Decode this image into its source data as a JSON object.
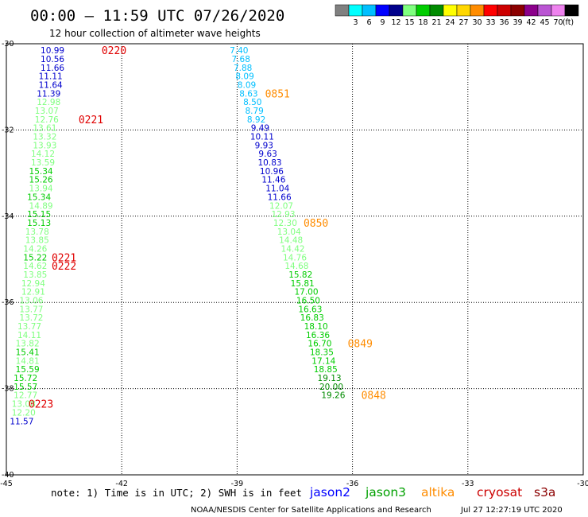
{
  "header": {
    "title": "00:00 – 11:59 UTC 07/26/2020",
    "subtitle": "12 hour collection of altimeter wave heights"
  },
  "legend": {
    "colors": [
      "#808080",
      "#00ffff",
      "#00bfff",
      "#0000ff",
      "#00008b",
      "#7fff7f",
      "#00cd00",
      "#008b00",
      "#ffff00",
      "#ffd700",
      "#ff8c00",
      "#ff0000",
      "#cd0000",
      "#8b0000",
      "#8b008b",
      "#ba55d3",
      "#ee82ee",
      "#000000"
    ],
    "labels": [
      "3",
      "6",
      "9",
      "12",
      "15",
      "18",
      "21",
      "24",
      "27",
      "30",
      "33",
      "36",
      "39",
      "42",
      "45",
      "70"
    ],
    "unit": "(ft)"
  },
  "footer": {
    "note": "note:  1) Time is in UTC;  2) SWH is in feet",
    "satellites": [
      {
        "name": "jason2",
        "color": "#0000ff"
      },
      {
        "name": "jason3",
        "color": "#00a000"
      },
      {
        "name": "altika",
        "color": "#ff8c00"
      },
      {
        "name": "cryosat",
        "color": "#cc0000"
      },
      {
        "name": "s3a",
        "color": "#8b0000"
      }
    ],
    "credit": "NOAA/NESDIS Center for Satellite Applications and Research",
    "timestamp": "Jul 27 12:27:19 UTC 2020"
  },
  "chart_data": {
    "type": "scatter",
    "xlim": [
      -45,
      -30
    ],
    "ylim": [
      -40,
      -30
    ],
    "x_ticks": [
      "-45",
      "-42",
      "-39",
      "-36",
      "-33",
      "-30"
    ],
    "y_ticks": [
      "-30",
      "-32",
      "-34",
      "-36",
      "-38",
      "-40"
    ],
    "grid": true,
    "track_a": {
      "points": [
        {
          "lon": -43.8,
          "lat": -30.15,
          "v": "10.99",
          "c": "#0000cd"
        },
        {
          "lon": -43.8,
          "lat": -30.35,
          "v": "10.56",
          "c": "#0000cd"
        },
        {
          "lon": -43.8,
          "lat": -30.55,
          "v": "11.66",
          "c": "#0000cd"
        },
        {
          "lon": -43.85,
          "lat": -30.75,
          "v": "11.11",
          "c": "#0000cd"
        },
        {
          "lon": -43.85,
          "lat": -30.95,
          "v": "11.64",
          "c": "#0000cd"
        },
        {
          "lon": -43.9,
          "lat": -31.15,
          "v": "11.39",
          "c": "#0000cd"
        },
        {
          "lon": -43.9,
          "lat": -31.35,
          "v": "12.98",
          "c": "#7fff7f"
        },
        {
          "lon": -43.95,
          "lat": -31.55,
          "v": "13.07",
          "c": "#7fff7f"
        },
        {
          "lon": -43.95,
          "lat": -31.75,
          "v": "12.76",
          "c": "#7fff7f"
        },
        {
          "lon": -44.0,
          "lat": -31.95,
          "v": "13.61",
          "c": "#7fff7f"
        },
        {
          "lon": -44.0,
          "lat": -32.15,
          "v": "13.32",
          "c": "#7fff7f"
        },
        {
          "lon": -44.0,
          "lat": -32.35,
          "v": "13.93",
          "c": "#7fff7f"
        },
        {
          "lon": -44.05,
          "lat": -32.55,
          "v": "14.12",
          "c": "#7fff7f"
        },
        {
          "lon": -44.05,
          "lat": -32.75,
          "v": "13.59",
          "c": "#7fff7f"
        },
        {
          "lon": -44.1,
          "lat": -32.95,
          "v": "15.34",
          "c": "#00cd00"
        },
        {
          "lon": -44.1,
          "lat": -33.15,
          "v": "15.26",
          "c": "#00cd00"
        },
        {
          "lon": -44.1,
          "lat": -33.35,
          "v": "13.94",
          "c": "#7fff7f"
        },
        {
          "lon": -44.15,
          "lat": -33.55,
          "v": "15.34",
          "c": "#00cd00"
        },
        {
          "lon": -44.1,
          "lat": -33.75,
          "v": "14.89",
          "c": "#7fff7f"
        },
        {
          "lon": -44.15,
          "lat": -33.95,
          "v": "15.15",
          "c": "#00cd00"
        },
        {
          "lon": -44.15,
          "lat": -34.15,
          "v": "15.13",
          "c": "#00cd00"
        },
        {
          "lon": -44.2,
          "lat": -34.35,
          "v": "13.78",
          "c": "#7fff7f"
        },
        {
          "lon": -44.2,
          "lat": -34.55,
          "v": "13.85",
          "c": "#7fff7f"
        },
        {
          "lon": -44.25,
          "lat": -34.75,
          "v": "14.26",
          "c": "#7fff7f"
        },
        {
          "lon": -44.25,
          "lat": -34.95,
          "v": "15.22",
          "c": "#00cd00"
        },
        {
          "lon": -44.25,
          "lat": -35.15,
          "v": "14.62",
          "c": "#7fff7f"
        },
        {
          "lon": -44.25,
          "lat": -35.35,
          "v": "13.85",
          "c": "#7fff7f"
        },
        {
          "lon": -44.3,
          "lat": -35.55,
          "v": "12.94",
          "c": "#7fff7f"
        },
        {
          "lon": -44.3,
          "lat": -35.75,
          "v": "12.91",
          "c": "#7fff7f"
        },
        {
          "lon": -44.35,
          "lat": -35.95,
          "v": "13.06",
          "c": "#7fff7f"
        },
        {
          "lon": -44.35,
          "lat": -36.15,
          "v": "13.77",
          "c": "#7fff7f"
        },
        {
          "lon": -44.35,
          "lat": -36.35,
          "v": "13.72",
          "c": "#7fff7f"
        },
        {
          "lon": -44.4,
          "lat": -36.55,
          "v": "13.77",
          "c": "#7fff7f"
        },
        {
          "lon": -44.4,
          "lat": -36.75,
          "v": "14.11",
          "c": "#7fff7f"
        },
        {
          "lon": -44.45,
          "lat": -36.95,
          "v": "13.82",
          "c": "#7fff7f"
        },
        {
          "lon": -44.45,
          "lat": -37.15,
          "v": "15.41",
          "c": "#00cd00"
        },
        {
          "lon": -44.45,
          "lat": -37.35,
          "v": "14.81",
          "c": "#7fff7f"
        },
        {
          "lon": -44.45,
          "lat": -37.55,
          "v": "15.59",
          "c": "#00cd00"
        },
        {
          "lon": -44.5,
          "lat": -37.75,
          "v": "15.72",
          "c": "#00cd00"
        },
        {
          "lon": -44.5,
          "lat": -37.95,
          "v": "15.57",
          "c": "#00cd00"
        },
        {
          "lon": -44.5,
          "lat": -38.15,
          "v": "12.77",
          "c": "#7fff7f"
        },
        {
          "lon": -44.55,
          "lat": -38.35,
          "v": "13.08",
          "c": "#7fff7f"
        },
        {
          "lon": -44.55,
          "lat": -38.55,
          "v": "12.20",
          "c": "#7fff7f"
        },
        {
          "lon": -44.6,
          "lat": -38.75,
          "v": "11.57",
          "c": "#0000cd"
        }
      ],
      "times": [
        {
          "lon": -42.2,
          "lat": -30.15,
          "t": "0220"
        },
        {
          "lon": -42.8,
          "lat": -31.75,
          "t": "0221"
        },
        {
          "lon": -43.5,
          "lat": -34.95,
          "t": "0221"
        },
        {
          "lon": -43.5,
          "lat": -35.15,
          "t": "0222"
        },
        {
          "lon": -44.1,
          "lat": -38.35,
          "t": "0223"
        }
      ]
    },
    "track_b": {
      "points": [
        {
          "lon": -38.95,
          "lat": -30.15,
          "v": "7.40",
          "c": "#00bfff"
        },
        {
          "lon": -38.9,
          "lat": -30.35,
          "v": "7.68",
          "c": "#00bfff"
        },
        {
          "lon": -38.85,
          "lat": -30.55,
          "v": "7.88",
          "c": "#00bfff"
        },
        {
          "lon": -38.8,
          "lat": -30.75,
          "v": "8.09",
          "c": "#00bfff"
        },
        {
          "lon": -38.75,
          "lat": -30.95,
          "v": "8.09",
          "c": "#00bfff"
        },
        {
          "lon": -38.7,
          "lat": -31.15,
          "v": "8.63",
          "c": "#00bfff"
        },
        {
          "lon": -38.6,
          "lat": -31.35,
          "v": "8.50",
          "c": "#00bfff"
        },
        {
          "lon": -38.55,
          "lat": -31.55,
          "v": "8.79",
          "c": "#00bfff"
        },
        {
          "lon": -38.5,
          "lat": -31.75,
          "v": "8.92",
          "c": "#00bfff"
        },
        {
          "lon": -38.4,
          "lat": -31.95,
          "v": "9.49",
          "c": "#0000cd"
        },
        {
          "lon": -38.35,
          "lat": -32.15,
          "v": "10.11",
          "c": "#0000cd"
        },
        {
          "lon": -38.3,
          "lat": -32.35,
          "v": "9.93",
          "c": "#0000cd"
        },
        {
          "lon": -38.2,
          "lat": -32.55,
          "v": "9.63",
          "c": "#0000cd"
        },
        {
          "lon": -38.15,
          "lat": -32.75,
          "v": "10.83",
          "c": "#0000cd"
        },
        {
          "lon": -38.1,
          "lat": -32.95,
          "v": "10.96",
          "c": "#0000cd"
        },
        {
          "lon": -38.05,
          "lat": -33.15,
          "v": "11.46",
          "c": "#0000cd"
        },
        {
          "lon": -37.95,
          "lat": -33.35,
          "v": "11.04",
          "c": "#0000cd"
        },
        {
          "lon": -37.9,
          "lat": -33.55,
          "v": "11.66",
          "c": "#0000cd"
        },
        {
          "lon": -37.85,
          "lat": -33.75,
          "v": "12.07",
          "c": "#7fff7f"
        },
        {
          "lon": -37.8,
          "lat": -33.95,
          "v": "12.93",
          "c": "#7fff7f"
        },
        {
          "lon": -37.75,
          "lat": -34.15,
          "v": "12.30",
          "c": "#7fff7f"
        },
        {
          "lon": -37.65,
          "lat": -34.35,
          "v": "13.04",
          "c": "#7fff7f"
        },
        {
          "lon": -37.6,
          "lat": -34.55,
          "v": "14.48",
          "c": "#7fff7f"
        },
        {
          "lon": -37.55,
          "lat": -34.75,
          "v": "14.42",
          "c": "#7fff7f"
        },
        {
          "lon": -37.5,
          "lat": -34.95,
          "v": "14.76",
          "c": "#7fff7f"
        },
        {
          "lon": -37.45,
          "lat": -35.15,
          "v": "14.68",
          "c": "#7fff7f"
        },
        {
          "lon": -37.35,
          "lat": -35.35,
          "v": "15.82",
          "c": "#00cd00"
        },
        {
          "lon": -37.3,
          "lat": -35.55,
          "v": "15.81",
          "c": "#00cd00"
        },
        {
          "lon": -37.2,
          "lat": -35.75,
          "v": "17.00",
          "c": "#00cd00"
        },
        {
          "lon": -37.15,
          "lat": -35.95,
          "v": "16.50",
          "c": "#00cd00"
        },
        {
          "lon": -37.1,
          "lat": -36.15,
          "v": "16.63",
          "c": "#00cd00"
        },
        {
          "lon": -37.05,
          "lat": -36.35,
          "v": "16.83",
          "c": "#00cd00"
        },
        {
          "lon": -36.95,
          "lat": -36.55,
          "v": "18.10",
          "c": "#00cd00"
        },
        {
          "lon": -36.9,
          "lat": -36.75,
          "v": "16.36",
          "c": "#00cd00"
        },
        {
          "lon": -36.85,
          "lat": -36.95,
          "v": "16.70",
          "c": "#00cd00"
        },
        {
          "lon": -36.8,
          "lat": -37.15,
          "v": "18.35",
          "c": "#00cd00"
        },
        {
          "lon": -36.75,
          "lat": -37.35,
          "v": "17.14",
          "c": "#00cd00"
        },
        {
          "lon": -36.7,
          "lat": -37.55,
          "v": "18.85",
          "c": "#00cd00"
        },
        {
          "lon": -36.6,
          "lat": -37.75,
          "v": "19.13",
          "c": "#008b00"
        },
        {
          "lon": -36.55,
          "lat": -37.95,
          "v": "20.00",
          "c": "#008b00"
        },
        {
          "lon": -36.5,
          "lat": -38.15,
          "v": "19.26",
          "c": "#008b00"
        }
      ],
      "times": [
        {
          "lon": -37.95,
          "lat": -31.15,
          "t": "0851"
        },
        {
          "lon": -36.95,
          "lat": -34.15,
          "t": "0850"
        },
        {
          "lon": -35.8,
          "lat": -36.95,
          "t": "0849"
        },
        {
          "lon": -35.45,
          "lat": -38.15,
          "t": "0848"
        }
      ]
    }
  }
}
